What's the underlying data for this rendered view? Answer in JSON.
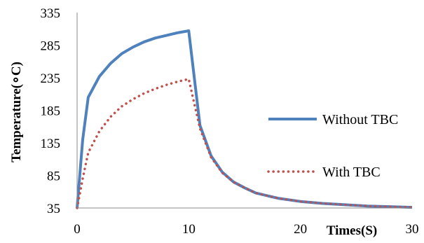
{
  "chart_data": {
    "type": "line",
    "title": "",
    "xlabel": "Times(S)",
    "ylabel": "Temperature(∘C)",
    "xlim": [
      0,
      30
    ],
    "ylim": [
      35,
      335
    ],
    "xticks": [
      0,
      10,
      20,
      30
    ],
    "yticks": [
      35,
      85,
      135,
      185,
      235,
      285,
      335
    ],
    "grid": false,
    "legend_position": "right",
    "series": [
      {
        "name": "Without TBC",
        "color": "#4f81bd",
        "style": "solid",
        "x": [
          0,
          0.5,
          1,
          2,
          3,
          4,
          5,
          6,
          7,
          8,
          9,
          10,
          11,
          12,
          13,
          14,
          15,
          16,
          18,
          20,
          22,
          24,
          26,
          28,
          30
        ],
        "y": [
          35,
          140,
          205,
          237,
          257,
          272,
          282,
          290,
          296,
          300,
          304,
          307,
          162,
          115,
          90,
          75,
          66,
          58,
          50,
          45,
          42,
          40,
          38,
          37,
          36
        ]
      },
      {
        "name": "With TBC",
        "color": "#c0504d",
        "style": "dotted",
        "x": [
          0,
          0.5,
          1,
          2,
          3,
          4,
          5,
          6,
          7,
          8,
          9,
          10,
          11,
          12,
          13,
          14,
          15,
          16,
          18,
          20,
          22,
          24,
          26,
          28,
          30
        ],
        "y": [
          35,
          80,
          120,
          153,
          175,
          191,
          202,
          211,
          218,
          224,
          229,
          233,
          157,
          113,
          89,
          75,
          66,
          58,
          50,
          45,
          42,
          40,
          38,
          37,
          36
        ]
      }
    ]
  }
}
